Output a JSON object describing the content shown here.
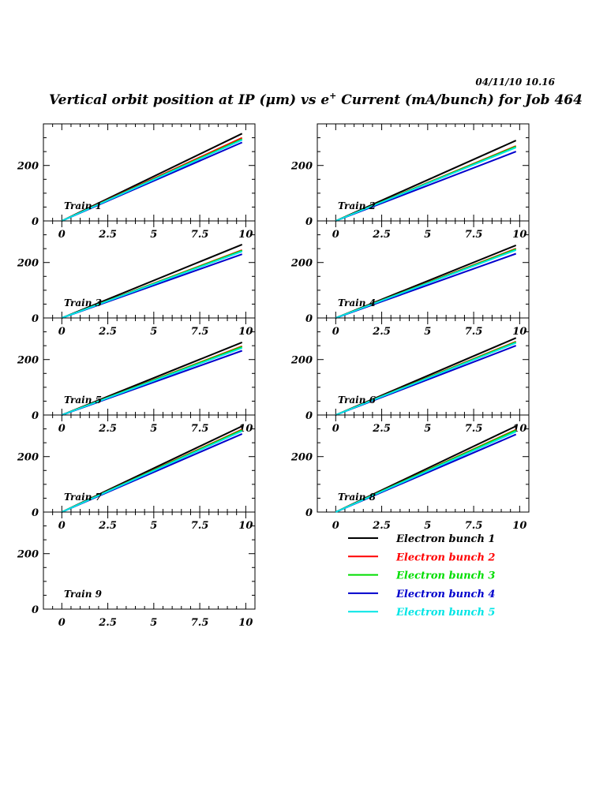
{
  "header": {
    "timestamp": "04/11/10   10.16",
    "title_before": "Vertical orbit position at IP (",
    "title_mu": "μ",
    "title_mid": "m) vs e",
    "title_sup": "+",
    "title_after": " Current (mA/bunch) for Job 464"
  },
  "legend": [
    {
      "label": "Electron bunch 1",
      "color": "#000000"
    },
    {
      "label": "Electron bunch 2",
      "color": "#ff0000"
    },
    {
      "label": "Electron bunch 3",
      "color": "#00dd00"
    },
    {
      "label": "Electron bunch 4",
      "color": "#0000cc"
    },
    {
      "label": "Electron bunch 5",
      "color": "#00e5e5"
    }
  ],
  "chart_data": {
    "type": "line",
    "xlim": [
      -1,
      10.5
    ],
    "ylim": [
      0,
      350
    ],
    "x_ticks": [
      "0",
      "2.5",
      "5",
      "7.5",
      "10"
    ],
    "y_ticks": [
      "0",
      "200"
    ],
    "x_tick_values": [
      0,
      2.5,
      5,
      7.5,
      10
    ],
    "y_tick_values": [
      0,
      200
    ],
    "panels": [
      {
        "label": "Train 1",
        "series": [
          {
            "name": "Electron bunch 1",
            "x": [
              0,
              9.8
            ],
            "y": [
              0,
              315
            ]
          },
          {
            "name": "Electron bunch 2",
            "x": [
              0,
              9.8
            ],
            "y": [
              0,
              300
            ]
          },
          {
            "name": "Electron bunch 3",
            "x": [
              0,
              9.8
            ],
            "y": [
              0,
              295
            ]
          },
          {
            "name": "Electron bunch 4",
            "x": [
              0,
              9.8
            ],
            "y": [
              0,
              283
            ]
          },
          {
            "name": "Electron bunch 5",
            "x": [
              0,
              9.8
            ],
            "y": [
              0,
              292
            ]
          }
        ]
      },
      {
        "label": "Train 2",
        "series": [
          {
            "name": "Electron bunch 1",
            "x": [
              0,
              9.8
            ],
            "y": [
              0,
              290
            ]
          },
          {
            "name": "Electron bunch 2",
            "x": [
              0,
              9.8
            ],
            "y": [
              0,
              270
            ]
          },
          {
            "name": "Electron bunch 3",
            "x": [
              0,
              9.8
            ],
            "y": [
              0,
              268
            ]
          },
          {
            "name": "Electron bunch 4",
            "x": [
              0,
              9.8
            ],
            "y": [
              0,
              250
            ]
          },
          {
            "name": "Electron bunch 5",
            "x": [
              0,
              9.8
            ],
            "y": [
              0,
              265
            ]
          }
        ]
      },
      {
        "label": "Train 3",
        "series": [
          {
            "name": "Electron bunch 1",
            "x": [
              0,
              9.8
            ],
            "y": [
              0,
              265
            ]
          },
          {
            "name": "Electron bunch 2",
            "x": [
              0,
              9.8
            ],
            "y": [
              0,
              245
            ]
          },
          {
            "name": "Electron bunch 3",
            "x": [
              0,
              9.8
            ],
            "y": [
              0,
              243
            ]
          },
          {
            "name": "Electron bunch 4",
            "x": [
              0,
              9.8
            ],
            "y": [
              0,
              230
            ]
          },
          {
            "name": "Electron bunch 5",
            "x": [
              0,
              9.8
            ],
            "y": [
              0,
              240
            ]
          }
        ]
      },
      {
        "label": "Train 4",
        "series": [
          {
            "name": "Electron bunch 1",
            "x": [
              0,
              9.8
            ],
            "y": [
              0,
              262
            ]
          },
          {
            "name": "Electron bunch 2",
            "x": [
              0,
              9.8
            ],
            "y": [
              0,
              250
            ]
          },
          {
            "name": "Electron bunch 3",
            "x": [
              0,
              9.8
            ],
            "y": [
              0,
              248
            ]
          },
          {
            "name": "Electron bunch 4",
            "x": [
              0,
              9.8
            ],
            "y": [
              0,
              232
            ]
          },
          {
            "name": "Electron bunch 5",
            "x": [
              0,
              9.8
            ],
            "y": [
              0,
              245
            ]
          }
        ]
      },
      {
        "label": "Train 5",
        "series": [
          {
            "name": "Electron bunch 1",
            "x": [
              0,
              9.8
            ],
            "y": [
              0,
              262
            ]
          },
          {
            "name": "Electron bunch 2",
            "x": [
              0,
              9.8
            ],
            "y": [
              0,
              248
            ]
          },
          {
            "name": "Electron bunch 3",
            "x": [
              0,
              9.8
            ],
            "y": [
              0,
              246
            ]
          },
          {
            "name": "Electron bunch 4",
            "x": [
              0,
              9.8
            ],
            "y": [
              0,
              232
            ]
          },
          {
            "name": "Electron bunch 5",
            "x": [
              0,
              9.8
            ],
            "y": [
              0,
              242
            ]
          }
        ]
      },
      {
        "label": "Train 6",
        "series": [
          {
            "name": "Electron bunch 1",
            "x": [
              0,
              9.8
            ],
            "y": [
              0,
              278
            ]
          },
          {
            "name": "Electron bunch 2",
            "x": [
              0,
              9.8
            ],
            "y": [
              0,
              265
            ]
          },
          {
            "name": "Electron bunch 3",
            "x": [
              0,
              9.8
            ],
            "y": [
              0,
              263
            ]
          },
          {
            "name": "Electron bunch 4",
            "x": [
              0,
              9.8
            ],
            "y": [
              0,
              250
            ]
          },
          {
            "name": "Electron bunch 5",
            "x": [
              0,
              9.8
            ],
            "y": [
              0,
              260
            ]
          }
        ]
      },
      {
        "label": "Train 7",
        "series": [
          {
            "name": "Electron bunch 1",
            "x": [
              0,
              9.8
            ],
            "y": [
              0,
              310
            ]
          },
          {
            "name": "Electron bunch 2",
            "x": [
              0,
              9.8
            ],
            "y": [
              0,
              298
            ]
          },
          {
            "name": "Electron bunch 3",
            "x": [
              0,
              9.8
            ],
            "y": [
              0,
              296
            ]
          },
          {
            "name": "Electron bunch 4",
            "x": [
              0,
              9.8
            ],
            "y": [
              0,
              282
            ]
          },
          {
            "name": "Electron bunch 5",
            "x": [
              0,
              9.8
            ],
            "y": [
              0,
              292
            ]
          }
        ]
      },
      {
        "label": "Train 8",
        "series": [
          {
            "name": "Electron bunch 1",
            "x": [
              0,
              9.8
            ],
            "y": [
              0,
              310
            ]
          },
          {
            "name": "Electron bunch 2",
            "x": [
              0,
              9.8
            ],
            "y": [
              0,
              297
            ]
          },
          {
            "name": "Electron bunch 3",
            "x": [
              0,
              9.8
            ],
            "y": [
              0,
              295
            ]
          },
          {
            "name": "Electron bunch 4",
            "x": [
              0,
              9.8
            ],
            "y": [
              0,
              280
            ]
          },
          {
            "name": "Electron bunch 5",
            "x": [
              0,
              9.8
            ],
            "y": [
              0,
              290
            ]
          }
        ]
      },
      {
        "label": "Train 9",
        "series": []
      }
    ]
  }
}
